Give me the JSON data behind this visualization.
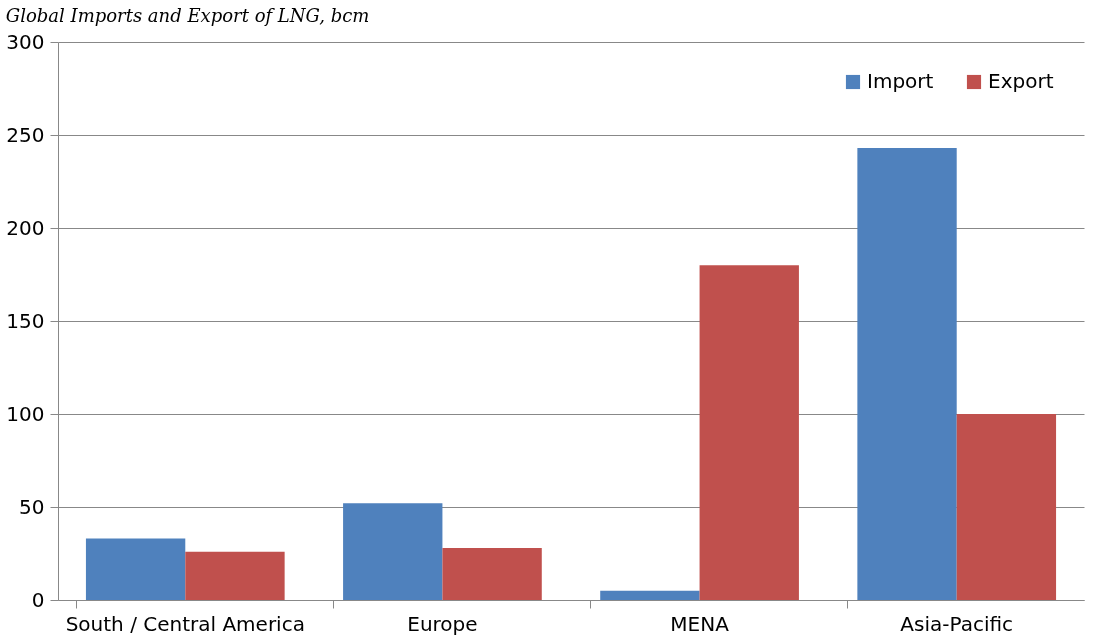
{
  "chart_data": {
    "type": "bar",
    "title": "Global Imports and Export of LNG, bcm",
    "categories": [
      "South / Central America",
      "Europe",
      "MENA",
      "Asia-Pacific"
    ],
    "series": [
      {
        "name": "Import",
        "color": "#4f81bd",
        "values": [
          33,
          52,
          5,
          243
        ]
      },
      {
        "name": "Export",
        "color": "#c0504d",
        "values": [
          26,
          28,
          180,
          100
        ]
      }
    ],
    "ylim": [
      0,
      300
    ],
    "yticks": [
      0,
      50,
      100,
      150,
      200,
      250,
      300
    ],
    "grid": "y",
    "legend": "top right"
  }
}
